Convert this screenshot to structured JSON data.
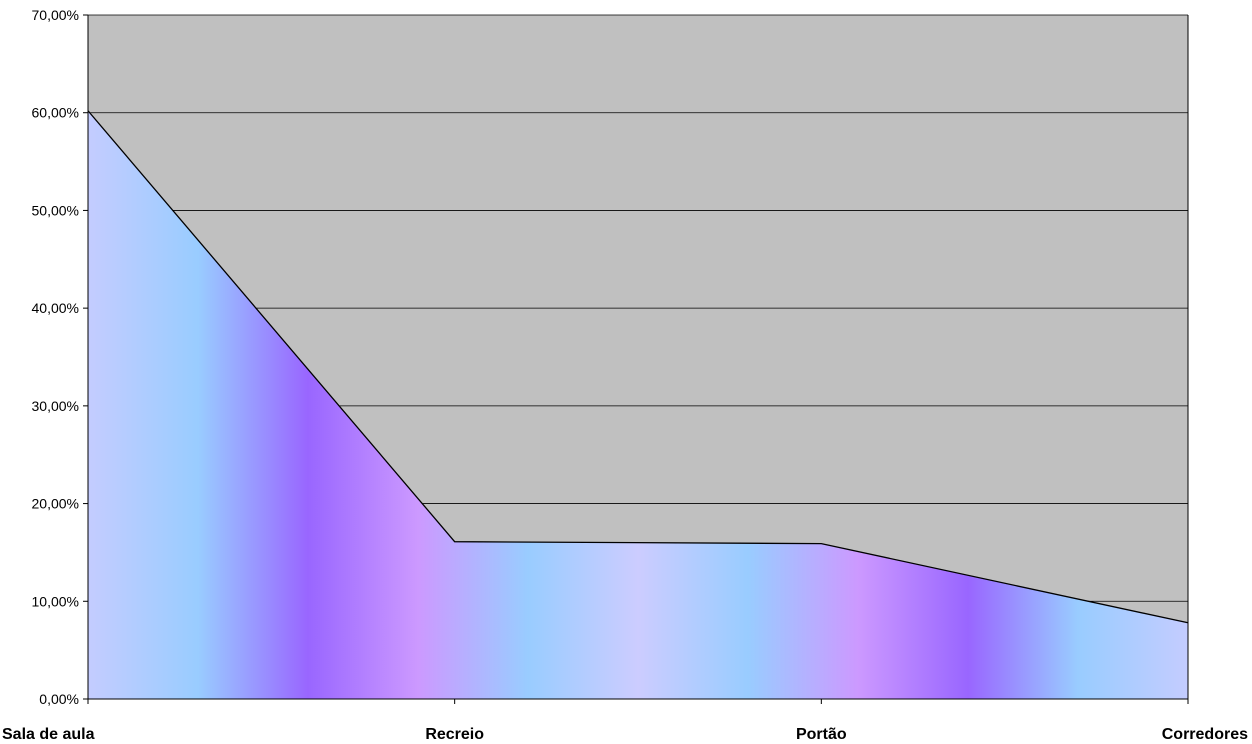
{
  "chart_data": {
    "type": "area",
    "categories": [
      "Sala de aula",
      "Recreio",
      "Portão",
      "Corredores"
    ],
    "values": [
      60.2,
      16.1,
      15.9,
      7.8
    ],
    "ylim": [
      0,
      70
    ],
    "yticks": [
      0,
      10,
      20,
      30,
      40,
      50,
      60,
      70
    ],
    "ytick_labels": [
      "0,00%",
      "10,00%",
      "20,00%",
      "30,00%",
      "40,00%",
      "50,00%",
      "60,00%",
      "70,00%"
    ],
    "title": "",
    "xlabel": "",
    "ylabel": "",
    "grid": true,
    "legend": "none",
    "colors": {
      "plot_background": "#c0c0c0",
      "gridline": "#000000",
      "outline": "#000000",
      "fill_gradient": [
        "#c4ccff",
        "#99ccff",
        "#9966ff",
        "#cc99ff",
        "#99ccff",
        "#ccccff",
        "#99ccff",
        "#cc99ff",
        "#9966ff",
        "#99ccff",
        "#c4ccff"
      ]
    }
  }
}
